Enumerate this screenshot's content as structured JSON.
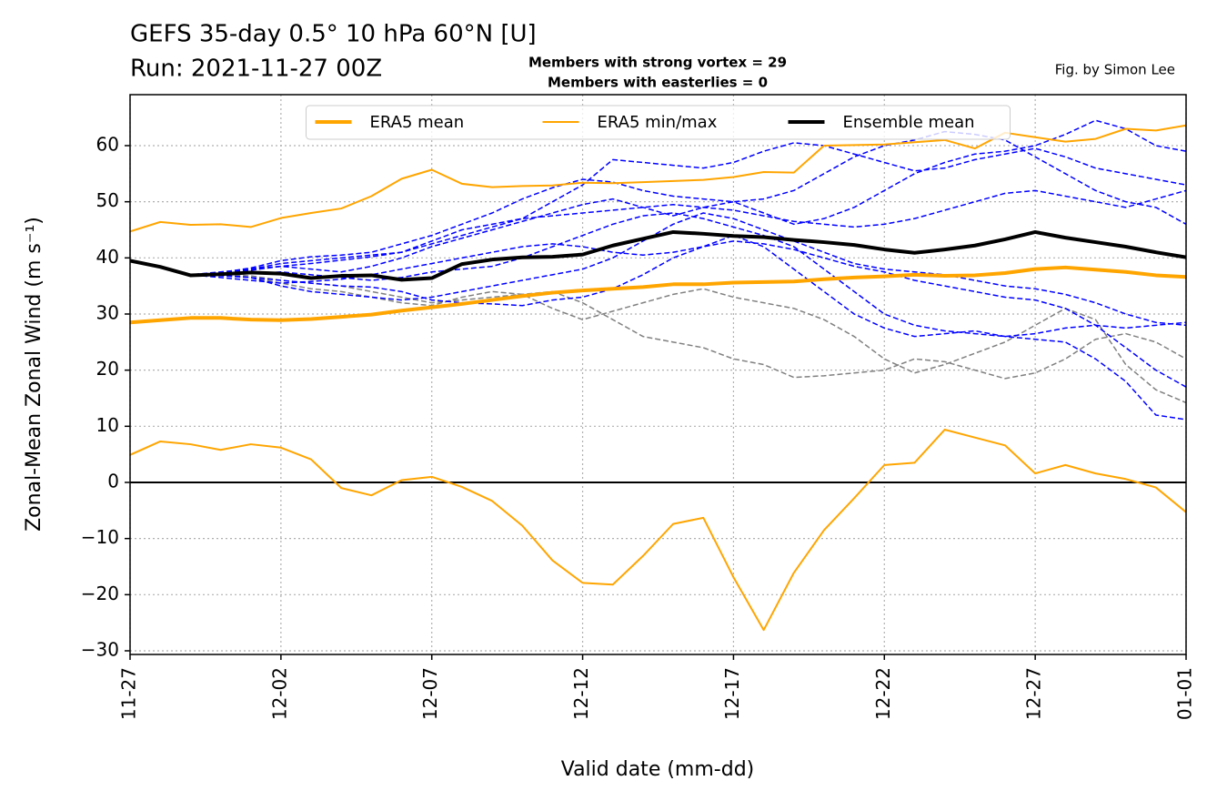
{
  "chart_data": {
    "type": "line",
    "title": "GEFS 35-day 0.5° 10 hPa 60°N [U]",
    "subtitle": "Run: 2021-11-27 00Z",
    "annotations": [
      {
        "text": "Members with strong vortex = 29",
        "color": "#0000ff"
      },
      {
        "text": "Members with easterlies = 0",
        "color": "#ff0000"
      },
      {
        "text": "Fig. by Simon Lee",
        "color": "#000000"
      }
    ],
    "xlabel": "Valid date (mm-dd)",
    "ylabel": "Zonal-Mean Zonal Wind (m s⁻¹)",
    "categories": [
      "11-27",
      null,
      null,
      null,
      null,
      "12-02",
      null,
      null,
      null,
      null,
      "12-07",
      null,
      null,
      null,
      null,
      "12-12",
      null,
      null,
      null,
      null,
      "12-17",
      null,
      null,
      null,
      null,
      "12-22",
      null,
      null,
      null,
      null,
      "12-27",
      null,
      null,
      null,
      null,
      "01-01"
    ],
    "ylim": [
      -30.65,
      69.08
    ],
    "yticks": [
      {
        "value": -30,
        "label": "−30"
      },
      {
        "value": -20,
        "label": "−20"
      },
      {
        "value": -10,
        "label": "−10"
      },
      0,
      10,
      20,
      30,
      40,
      50,
      60
    ],
    "grid": true,
    "legend": "upper center",
    "series": [
      {
        "color": "#808080",
        "dash": true,
        "linewidth": 1.5,
        "values": [
          39.5,
          38.4,
          37.0,
          37.0,
          36.5,
          35.5,
          34.5,
          34.0,
          33.0,
          32.0,
          31.5,
          33.0,
          34.0,
          33.5,
          31.0,
          29.0,
          30.5,
          32.0,
          33.5,
          34.5,
          33.0,
          32.0,
          31.0,
          29.0,
          26.0,
          22.0,
          19.5,
          21.0,
          23.0,
          25.0,
          28.0,
          31.0,
          29.0,
          21.0,
          16.5,
          14.2
        ]
      },
      {
        "color": "#808080",
        "dash": true,
        "linewidth": 1.5,
        "values": [
          39.5,
          38.4,
          37.0,
          37.0,
          36.8,
          36.0,
          35.5,
          35.0,
          34.0,
          33.0,
          32.0,
          32.5,
          33.0,
          33.5,
          34.0,
          32.0,
          29.0,
          26.0,
          25.0,
          24.0,
          22.0,
          21.0,
          18.7,
          19.0,
          19.5,
          20.0,
          22.0,
          21.5,
          20.0,
          18.5,
          19.5,
          22.0,
          25.5,
          26.5,
          25.0,
          22.0
        ]
      },
      {
        "color": "#0000ff",
        "dash": true,
        "linewidth": 1.5,
        "values": [
          39.5,
          38.4,
          37.0,
          37.5,
          38.0,
          38.5,
          39.0,
          39.6,
          40.2,
          41.0,
          42.5,
          44.0,
          45.5,
          47.0,
          50.0,
          53.0,
          57.5,
          57.0,
          56.5,
          56.0,
          57.0,
          59.0,
          60.5,
          60.0,
          58.5,
          57.0,
          55.5,
          56.0,
          57.5,
          58.5,
          59.5,
          58.0,
          56.0,
          55.0,
          54.0,
          53.0
        ]
      },
      {
        "color": "#0000ff",
        "dash": true,
        "linewidth": 1.5,
        "values": [
          39.5,
          38.4,
          37.0,
          36.8,
          36.5,
          36.0,
          35.5,
          35.0,
          34.8,
          34.0,
          32.5,
          32.0,
          31.8,
          31.5,
          32.5,
          33.0,
          34.5,
          37.0,
          40.0,
          42.0,
          44.0,
          42.0,
          38.0,
          34.0,
          30.0,
          27.5,
          26.0,
          26.5,
          27.0,
          26.0,
          25.5,
          25.0,
          22.0,
          18.0,
          12.0,
          11.2
        ]
      },
      {
        "color": "#0000ff",
        "dash": true,
        "linewidth": 1.5,
        "values": [
          39.5,
          38.4,
          37.0,
          37.2,
          37.8,
          38.5,
          38.0,
          37.5,
          38.5,
          40.0,
          42.0,
          43.5,
          45.0,
          46.5,
          48.0,
          49.5,
          50.5,
          49.0,
          47.5,
          49.0,
          50.0,
          48.0,
          46.0,
          47.0,
          49.0,
          52.0,
          55.0,
          57.0,
          58.5,
          59.0,
          60.0,
          62.0,
          64.5,
          63.0,
          60.0,
          59.0
        ]
      },
      {
        "color": "#0000ff",
        "dash": true,
        "linewidth": 1.5,
        "values": [
          39.5,
          38.4,
          37.0,
          36.5,
          36.0,
          35.5,
          35.8,
          36.2,
          37.0,
          38.0,
          39.0,
          40.0,
          41.0,
          42.0,
          42.5,
          42.0,
          41.0,
          40.5,
          41.0,
          42.0,
          43.0,
          42.5,
          41.5,
          40.0,
          38.5,
          37.5,
          36.0,
          35.0,
          34.0,
          33.0,
          32.5,
          31.0,
          28.0,
          24.0,
          20.0,
          17.0
        ]
      },
      {
        "color": "#0000ff",
        "dash": true,
        "linewidth": 1.5,
        "values": [
          39.5,
          38.4,
          37.0,
          37.0,
          37.2,
          37.5,
          37.0,
          36.5,
          36.0,
          36.5,
          37.5,
          38.0,
          38.5,
          40.0,
          42.0,
          44.0,
          46.0,
          47.5,
          48.0,
          47.0,
          45.5,
          44.0,
          42.0,
          38.0,
          34.0,
          30.0,
          28.0,
          27.0,
          26.5,
          26.0,
          26.5,
          27.5,
          28.0,
          27.5,
          28.0,
          28.5
        ]
      },
      {
        "color": "#0000ff",
        "dash": true,
        "linewidth": 1.5,
        "values": [
          39.5,
          38.4,
          37.0,
          37.3,
          38.0,
          39.0,
          39.5,
          40.0,
          40.5,
          41.0,
          43.0,
          45.0,
          46.0,
          47.0,
          47.5,
          48.0,
          48.5,
          49.0,
          49.5,
          49.0,
          48.5,
          47.5,
          46.5,
          46.0,
          45.5,
          46.0,
          47.0,
          48.5,
          50.0,
          51.5,
          52.0,
          51.0,
          50.0,
          49.0,
          50.5,
          52.0
        ]
      },
      {
        "color": "#0000ff",
        "dash": true,
        "linewidth": 1.5,
        "values": [
          39.5,
          38.4,
          37.0,
          36.9,
          36.5,
          35.0,
          34.0,
          33.5,
          33.0,
          32.5,
          33.0,
          34.0,
          35.0,
          36.0,
          37.0,
          38.0,
          40.0,
          43.0,
          46.0,
          48.0,
          47.0,
          45.0,
          43.0,
          41.0,
          39.0,
          38.0,
          37.5,
          37.0,
          36.0,
          35.0,
          34.5,
          33.5,
          32.0,
          30.0,
          28.5,
          28.0
        ]
      },
      {
        "color": "#0000ff",
        "dash": true,
        "linewidth": 1.5,
        "values": [
          39.5,
          38.4,
          37.0,
          37.4,
          38.2,
          39.5,
          40.2,
          40.5,
          41.0,
          42.5,
          44.0,
          46.0,
          48.0,
          50.5,
          52.5,
          54.0,
          53.5,
          52.0,
          51.0,
          50.5,
          50.0,
          50.5,
          52.0,
          55.0,
          58.0,
          60.0,
          61.0,
          62.5,
          62.0,
          61.0,
          58.0,
          55.0,
          52.0,
          50.0,
          49.0,
          46.0
        ]
      },
      {
        "name": "ERA5 mean",
        "color": "#ffa500",
        "linewidth": 4,
        "values": [
          28.5,
          28.9,
          29.3,
          29.3,
          29.0,
          28.9,
          29.1,
          29.5,
          29.9,
          30.6,
          31.2,
          31.8,
          32.5,
          33.2,
          33.8,
          34.2,
          34.5,
          34.8,
          35.3,
          35.3,
          35.6,
          35.7,
          35.8,
          36.2,
          36.5,
          36.7,
          37.0,
          36.8,
          36.9,
          37.3,
          38.0,
          38.3,
          37.9,
          37.5,
          36.9,
          36.6
        ]
      },
      {
        "name": "ERA5 min/max",
        "color": "#ffa500",
        "linewidth": 2,
        "values": [
          44.7,
          46.4,
          45.9,
          46.0,
          45.5,
          47.1,
          48.0,
          48.8,
          51.0,
          54.1,
          55.7,
          53.2,
          52.6,
          52.8,
          52.9,
          53.4,
          53.3,
          53.5,
          53.7,
          53.9,
          54.4,
          55.3,
          55.2,
          60.0,
          60.1,
          60.2,
          60.6,
          61.0,
          59.5,
          62.3,
          61.5,
          60.7,
          61.2,
          63.0,
          62.7,
          63.6
        ]
      },
      {
        "color": "#ffa500",
        "linewidth": 2,
        "values": [
          4.9,
          7.3,
          6.8,
          5.8,
          6.8,
          6.2,
          4.1,
          -1.0,
          -2.3,
          0.4,
          1.0,
          -0.8,
          -3.3,
          -7.7,
          -13.9,
          -17.9,
          -18.2,
          -13.1,
          -7.4,
          -6.3,
          -16.9,
          -26.3,
          -16.1,
          -8.5,
          -2.8,
          3.1,
          3.5,
          9.4,
          8.0,
          6.6,
          1.6,
          3.1,
          1.6,
          0.6,
          -0.9,
          -5.3
        ]
      },
      {
        "name": "Ensemble mean",
        "color": "#000000",
        "linewidth": 4,
        "values": [
          39.5,
          38.4,
          36.9,
          37.1,
          37.4,
          37.2,
          36.4,
          36.8,
          36.9,
          36.1,
          36.4,
          38.9,
          39.7,
          40.1,
          40.2,
          40.6,
          42.2,
          43.4,
          44.6,
          44.3,
          43.9,
          43.7,
          43.2,
          42.8,
          42.3,
          41.5,
          40.9,
          41.5,
          42.2,
          43.3,
          44.6,
          43.6,
          42.8,
          42.0,
          41.0,
          40.1
        ]
      }
    ]
  }
}
